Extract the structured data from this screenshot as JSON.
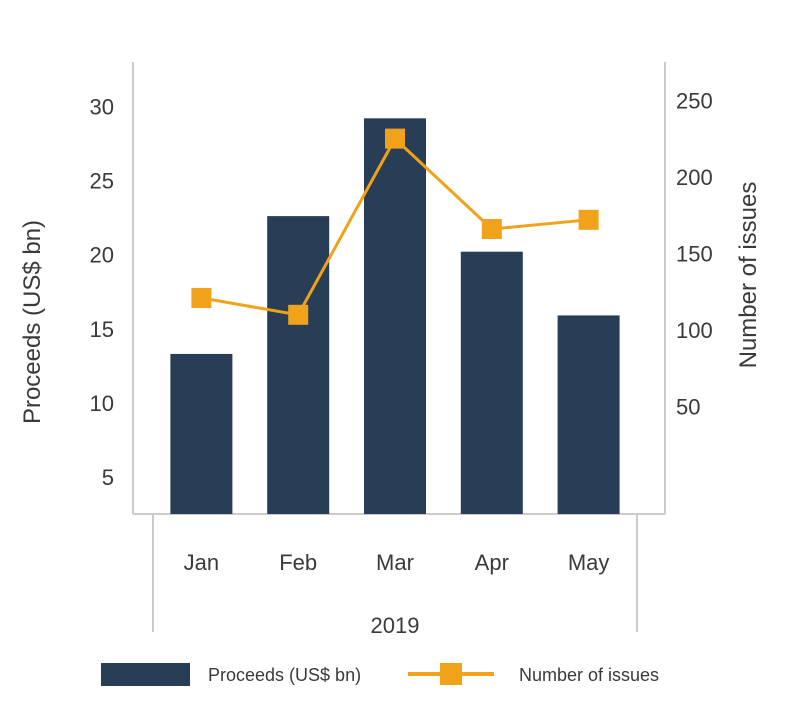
{
  "chart_data": {
    "type": "bar",
    "categories": [
      "Jan",
      "Feb",
      "Mar",
      "Apr",
      "May"
    ],
    "group_label": "2019",
    "series": [
      {
        "name": "Proceeds (US$ bn)",
        "type": "bar",
        "axis": "left",
        "values": [
          13.3,
          22.6,
          29.2,
          20.2,
          15.9
        ]
      },
      {
        "name": "Number of issues",
        "type": "line",
        "axis": "right",
        "values": [
          121,
          110,
          225,
          166,
          172
        ]
      }
    ],
    "y_left": {
      "label": "Proceeds (US$ bn)",
      "ticks": [
        5,
        10,
        15,
        20,
        25,
        30
      ],
      "range": [
        2.5,
        33
      ]
    },
    "y_right": {
      "label": "Number of issues",
      "ticks": [
        50,
        100,
        150,
        200,
        250
      ],
      "range": [
        -20,
        275
      ]
    },
    "legend_position": "bottom",
    "grid": false,
    "colors": {
      "bars": "#283d56",
      "line": "#f0a21a",
      "axis": "#cccccc",
      "text": "#3a3a3a"
    }
  }
}
